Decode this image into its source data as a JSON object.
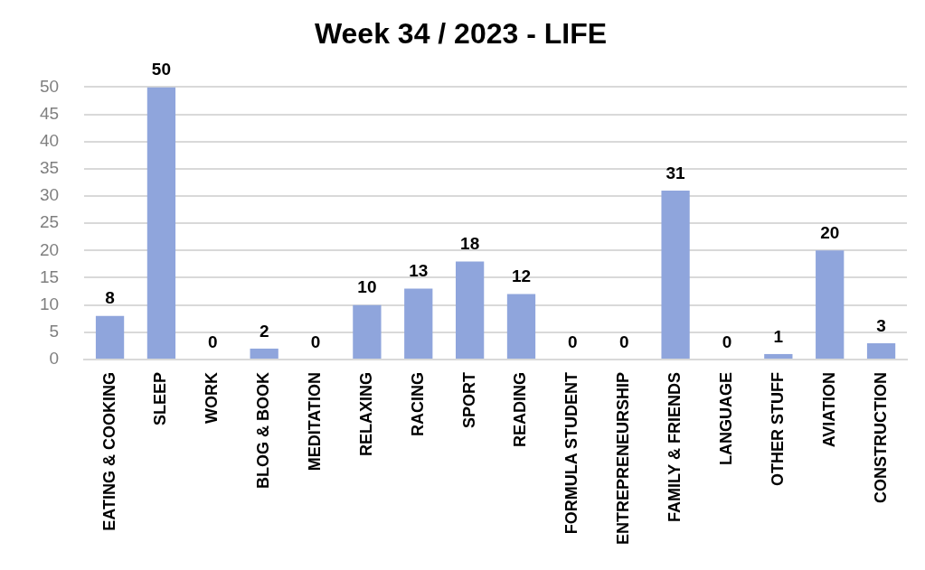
{
  "chart_data": {
    "type": "bar",
    "title": "Week 34 / 2023 - LIFE",
    "categories": [
      "EATING & COOKING",
      "SLEEP",
      "WORK",
      "BLOG & BOOK",
      "MEDITATION",
      "RELAXING",
      "RACING",
      "SPORT",
      "READING",
      "FORMULA STUDENT",
      "ENTREPRENEURSHIP",
      "FAMILY & FRIENDS",
      "LANGUAGE",
      "OTHER STUFF",
      "AVIATION",
      "CONSTRUCTION"
    ],
    "values": [
      8,
      50,
      0,
      2,
      0,
      10,
      13,
      18,
      12,
      0,
      0,
      31,
      0,
      1,
      20,
      3
    ],
    "color": "#8fa5dc",
    "ylim": [
      0,
      50
    ],
    "yticks": [
      0,
      5,
      10,
      15,
      20,
      25,
      30,
      35,
      40,
      45,
      50
    ],
    "grid": "y",
    "data_labels": true
  }
}
